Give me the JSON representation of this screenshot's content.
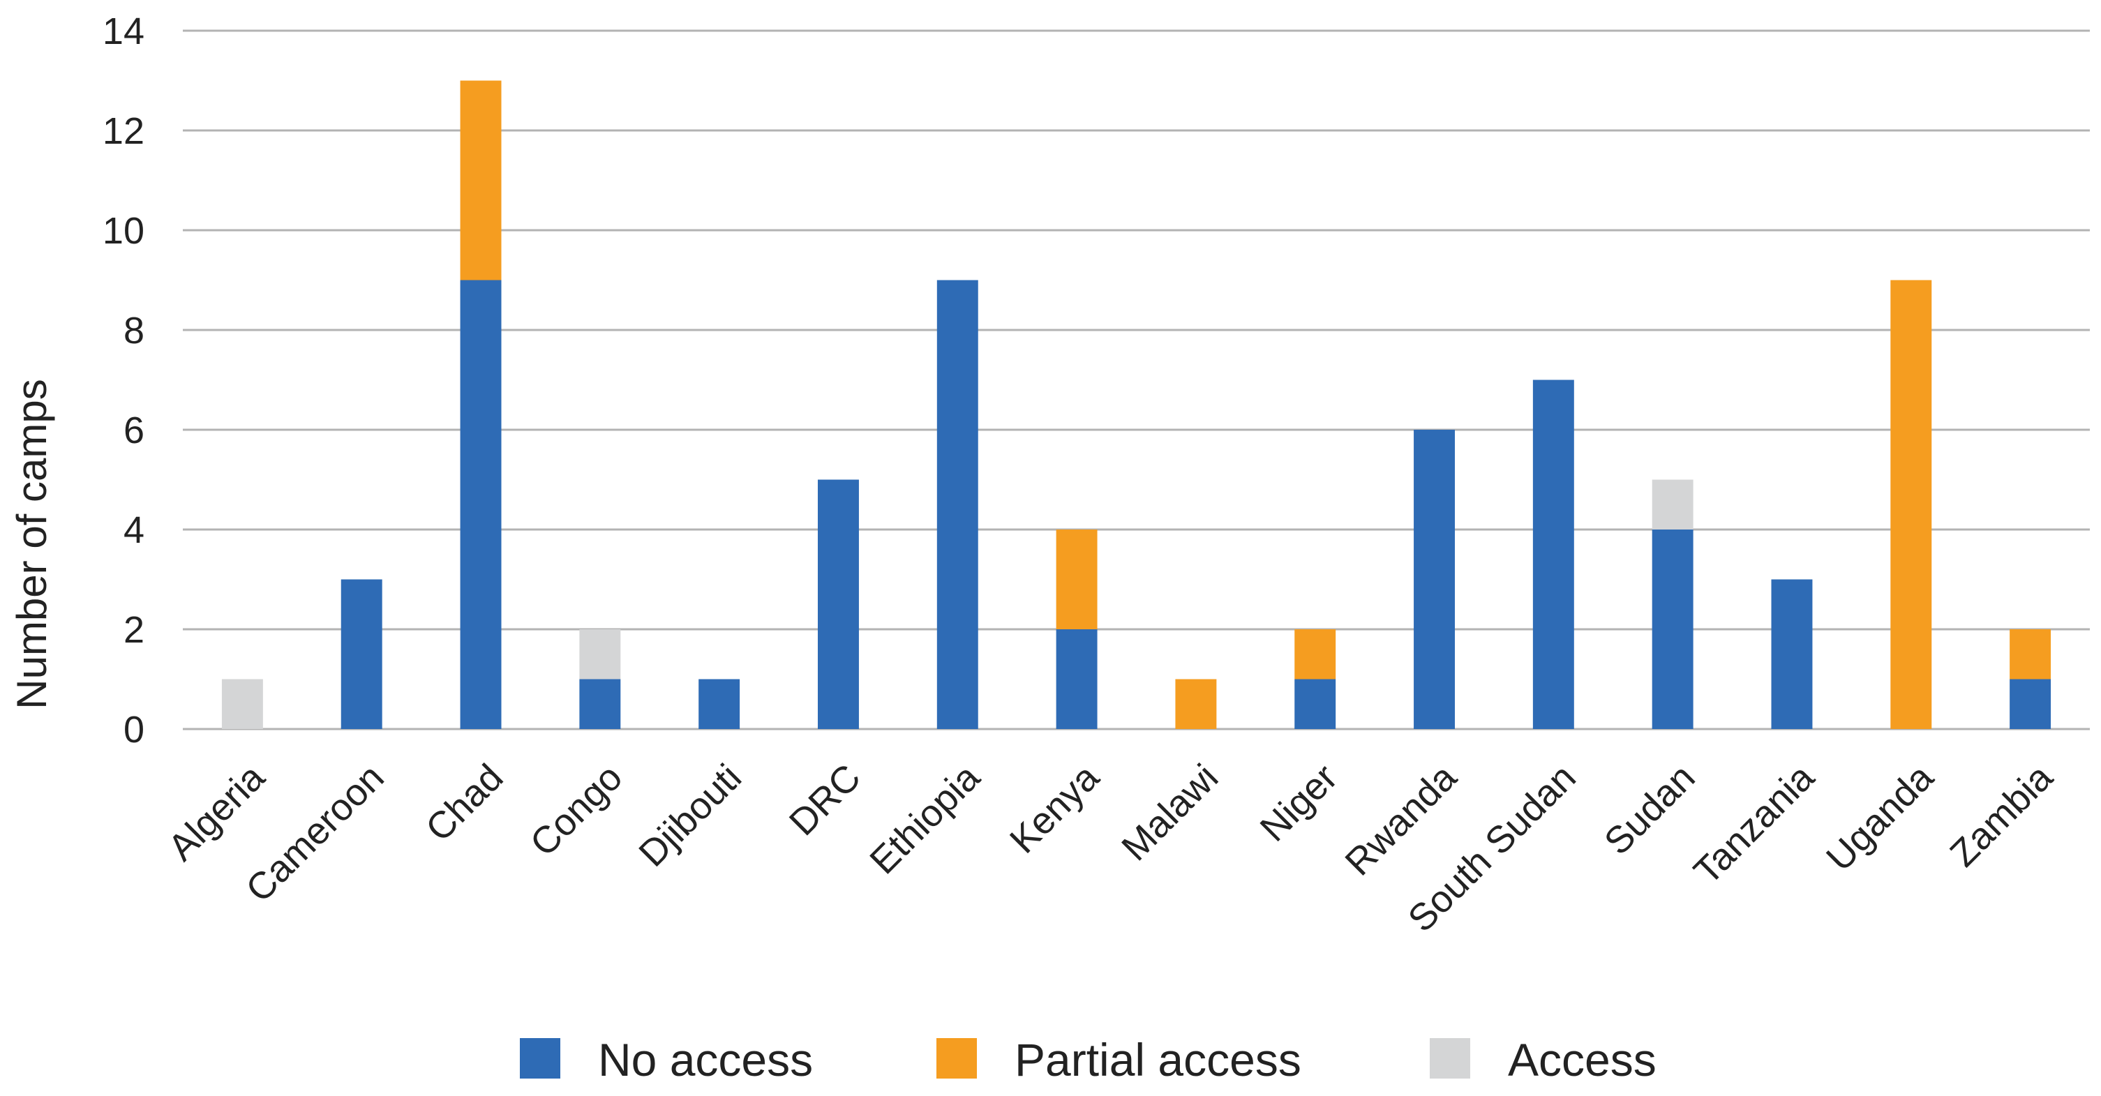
{
  "chart_data": {
    "type": "bar",
    "stacked": true,
    "title": "",
    "xlabel": "",
    "ylabel": "Number of camps",
    "ylim": [
      0,
      14
    ],
    "yticks": [
      0,
      2,
      4,
      6,
      8,
      10,
      12,
      14
    ],
    "grid": true,
    "legend_position": "bottom",
    "categories": [
      "Algeria",
      "Cameroon",
      "Chad",
      "Congo",
      "Djibouti",
      "DRC",
      "Ethiopia",
      "Kenya",
      "Malawi",
      "Niger",
      "Rwanda",
      "South Sudan",
      "Sudan",
      "Tanzania",
      "Uganda",
      "Zambia"
    ],
    "series": [
      {
        "name": "No access",
        "color": "#2e6bb5",
        "values": [
          0,
          3,
          9,
          1,
          1,
          5,
          9,
          2,
          0,
          1,
          6,
          7,
          4,
          3,
          0,
          1
        ]
      },
      {
        "name": "Partial access",
        "color": "#f59d20",
        "values": [
          0,
          0,
          4,
          0,
          0,
          0,
          0,
          2,
          1,
          1,
          0,
          0,
          0,
          0,
          9,
          1
        ]
      },
      {
        "name": "Access",
        "color": "#d4d5d6",
        "values": [
          1,
          0,
          0,
          1,
          0,
          0,
          0,
          0,
          0,
          0,
          0,
          0,
          1,
          0,
          0,
          0
        ]
      }
    ]
  }
}
